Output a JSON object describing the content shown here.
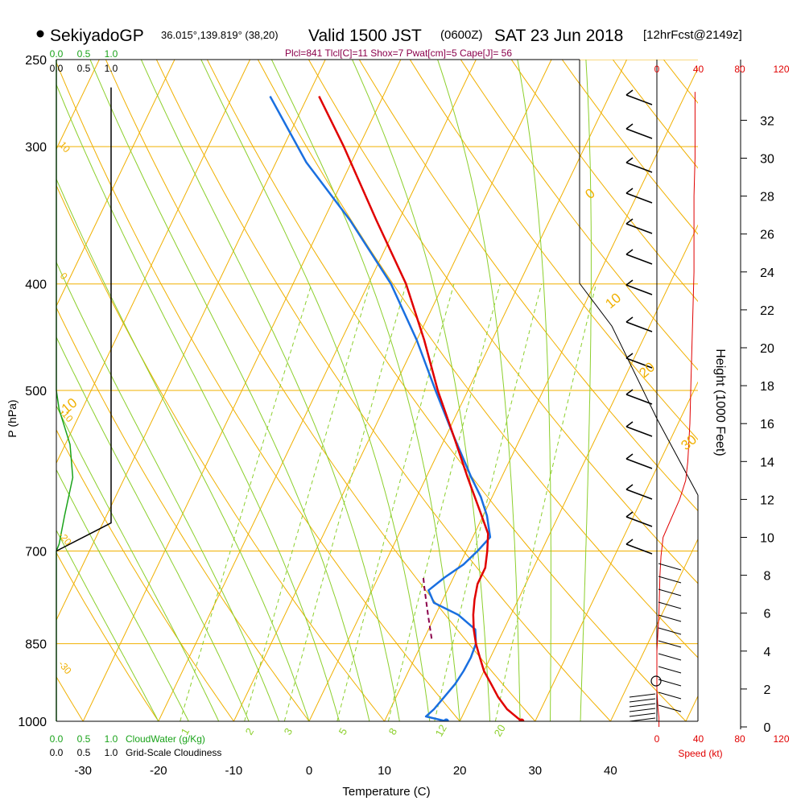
{
  "header": {
    "station": "SekiyadoGP",
    "coords": "36.015°,139.819° (38,20)",
    "valid": "Valid 1500 JST",
    "utc": "(0600Z)",
    "date": "SAT 23 Jun 2018",
    "fcst": "[12hrFcst@2149z]"
  },
  "indices": "Plcl=841 Tlcl[C]=11 Shox=7 Pwat[cm]=5 Cape[J]= 56",
  "labels": {
    "cloudwater": "CloudWater (g/Kg)",
    "cloudiness": "Grid-Scale Cloudiness",
    "speed": "Speed (kt)",
    "height": "Height (1000 Feet)"
  },
  "colors": {
    "isobar": "#f0b000",
    "dry_adiabat": "#f0b000",
    "moist_adiabat": "#8ccf2c",
    "mixing_ratio": "#8ccf2c",
    "temperature": "#e00000",
    "dewpoint": "#1a6fe0",
    "parcel": "#8b004b",
    "cloudwater": "#1aa31a",
    "indices": "#8b004b",
    "speed": "#e00000"
  },
  "chart_data": {
    "type": "skewt",
    "xlabel": "Temperature (C)",
    "ylabel": "P (hPa)",
    "x_ticks": [
      "-30",
      "-20",
      "-10",
      "0",
      "10",
      "20",
      "30",
      "40"
    ],
    "p_ticks": [
      "250",
      "300",
      "400",
      "500",
      "700",
      "850",
      "1000"
    ],
    "p_tick_values": [
      250,
      300,
      400,
      500,
      700,
      850,
      1000
    ],
    "height_ticks": [
      "0",
      "2",
      "4",
      "6",
      "8",
      "10",
      "12",
      "14",
      "16",
      "18",
      "20",
      "22",
      "24",
      "26",
      "28",
      "30",
      "32"
    ],
    "speed_ticks": [
      "0",
      "40",
      "80",
      "120"
    ],
    "cloud_ticks": [
      "0.0",
      "0.5",
      "1.0"
    ],
    "dry_adiabat_labels": [
      "-10",
      "0",
      "10",
      "20",
      "30"
    ],
    "isotherm_labels": [
      "10",
      "0",
      "-10",
      "-20",
      "-30"
    ],
    "mixing_ratio_labels": [
      "1",
      "2",
      "3",
      "5",
      "8",
      "12",
      "20"
    ],
    "temperature_profile": [
      {
        "p": 1000,
        "t": 28.2
      },
      {
        "p": 975,
        "t": 25.5
      },
      {
        "p": 950,
        "t": 23.5
      },
      {
        "p": 925,
        "t": 21.8
      },
      {
        "p": 900,
        "t": 20.0
      },
      {
        "p": 875,
        "t": 18.6
      },
      {
        "p": 850,
        "t": 17.2
      },
      {
        "p": 825,
        "t": 16.0
      },
      {
        "p": 800,
        "t": 15.0
      },
      {
        "p": 775,
        "t": 14.2
      },
      {
        "p": 750,
        "t": 13.6
      },
      {
        "p": 725,
        "t": 13.6
      },
      {
        "p": 700,
        "t": 12.8
      },
      {
        "p": 675,
        "t": 11.8
      },
      {
        "p": 650,
        "t": 9.8
      },
      {
        "p": 600,
        "t": 5.5
      },
      {
        "p": 550,
        "t": 1.0
      },
      {
        "p": 500,
        "t": -4.0
      },
      {
        "p": 450,
        "t": -9.0
      },
      {
        "p": 400,
        "t": -15.0
      },
      {
        "p": 350,
        "t": -23.0
      },
      {
        "p": 300,
        "t": -32.0
      },
      {
        "p": 270,
        "t": -38.5
      }
    ],
    "dewpoint_profile": [
      {
        "p": 1000,
        "t": 18.2
      },
      {
        "p": 990,
        "t": 15.2
      },
      {
        "p": 975,
        "t": 15.8
      },
      {
        "p": 950,
        "t": 16.4
      },
      {
        "p": 925,
        "t": 17.0
      },
      {
        "p": 900,
        "t": 17.3
      },
      {
        "p": 875,
        "t": 17.4
      },
      {
        "p": 850,
        "t": 17.2
      },
      {
        "p": 825,
        "t": 16.2
      },
      {
        "p": 800,
        "t": 13.0
      },
      {
        "p": 780,
        "t": 9.0
      },
      {
        "p": 760,
        "t": 7.5
      },
      {
        "p": 740,
        "t": 8.8
      },
      {
        "p": 720,
        "t": 10.5
      },
      {
        "p": 700,
        "t": 11.5
      },
      {
        "p": 680,
        "t": 12.3
      },
      {
        "p": 650,
        "t": 10.5
      },
      {
        "p": 625,
        "t": 8.5
      },
      {
        "p": 600,
        "t": 6.0
      },
      {
        "p": 550,
        "t": 1.0
      },
      {
        "p": 500,
        "t": -4.3
      },
      {
        "p": 450,
        "t": -10.0
      },
      {
        "p": 400,
        "t": -17.0
      },
      {
        "p": 350,
        "t": -26.5
      },
      {
        "p": 310,
        "t": -36.0
      },
      {
        "p": 270,
        "t": -45.0
      }
    ],
    "parcel_profile": [
      {
        "p": 841,
        "t": 11.0
      },
      {
        "p": 800,
        "t": 9.0
      },
      {
        "p": 760,
        "t": 7.0
      },
      {
        "p": 740,
        "t": 6.0
      }
    ],
    "surface_temperature": 28.2,
    "surface_dewpoint": 18.2,
    "cloudwater_profile": [
      {
        "p": 1000,
        "v": 0.0
      },
      {
        "p": 700,
        "v": 0.0
      },
      {
        "p": 690,
        "v": 0.05
      },
      {
        "p": 650,
        "v": 0.15
      },
      {
        "p": 600,
        "v": 0.3
      },
      {
        "p": 560,
        "v": 0.25
      },
      {
        "p": 520,
        "v": 0.05
      },
      {
        "p": 500,
        "v": 0.0
      },
      {
        "p": 250,
        "v": 0.0
      }
    ],
    "cloudiness_profile": [
      {
        "p": 700,
        "v": 0.0
      },
      {
        "p": 660,
        "v": 1.0
      },
      {
        "p": 640,
        "v": 1.0
      },
      {
        "p": 265,
        "v": 1.0
      }
    ],
    "speed_profile": [
      {
        "h": 0,
        "s": 2
      },
      {
        "h": 0.5,
        "s": 2
      },
      {
        "h": 1,
        "s": 1
      },
      {
        "h": 2,
        "s": 0
      },
      {
        "h": 3,
        "s": 0
      },
      {
        "h": 4,
        "s": 0
      },
      {
        "h": 6,
        "s": 2
      },
      {
        "h": 8,
        "s": 3
      },
      {
        "h": 9,
        "s": 4
      },
      {
        "h": 10,
        "s": 6
      },
      {
        "h": 11,
        "s": 14
      },
      {
        "h": 12,
        "s": 22
      },
      {
        "h": 13,
        "s": 28
      },
      {
        "h": 14,
        "s": 30
      },
      {
        "h": 16,
        "s": 32
      },
      {
        "h": 18,
        "s": 33
      },
      {
        "h": 20,
        "s": 34
      },
      {
        "h": 22,
        "s": 35
      },
      {
        "h": 24,
        "s": 36
      },
      {
        "h": 26,
        "s": 36
      },
      {
        "h": 28,
        "s": 36
      },
      {
        "h": 30,
        "s": 37
      },
      {
        "h": 32,
        "s": 37
      },
      {
        "h": 33.5,
        "s": 37
      }
    ]
  }
}
